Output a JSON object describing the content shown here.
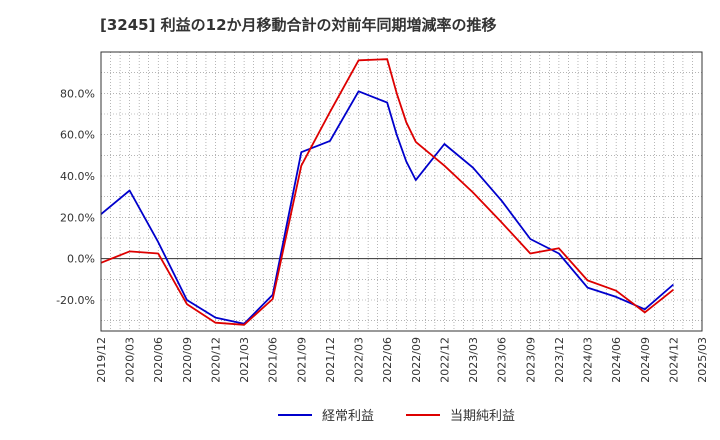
{
  "chart_data": {
    "type": "line",
    "title": "[3245]  利益の12か月移動合計の対前年同期増減率の推移",
    "x_ticks": [
      "2019/12",
      "2020/03",
      "2020/06",
      "2020/09",
      "2020/12",
      "2021/03",
      "2021/06",
      "2021/09",
      "2021/12",
      "2022/03",
      "2022/06",
      "2022/09",
      "2022/12",
      "2023/03",
      "2023/06",
      "2023/09",
      "2023/12",
      "2024/03",
      "2024/06",
      "2024/09",
      "2024/12",
      "2025/03"
    ],
    "y_ticks": [
      "-20.0%",
      "0.0%",
      "20.0%",
      "40.0%",
      "60.0%",
      "80.0%"
    ],
    "y_tick_values": [
      -20,
      0,
      20,
      40,
      60,
      80
    ],
    "ylim": [
      -35,
      100
    ],
    "grid": true,
    "legend_position": "bottom",
    "series": [
      {
        "name": "経常利益",
        "color": "#0000cc",
        "points": [
          [
            "2019/12",
            21.5
          ],
          [
            "2020/03",
            33
          ],
          [
            "2020/06",
            8
          ],
          [
            "2020/09",
            -20
          ],
          [
            "2020/12",
            -28.5
          ],
          [
            "2021/03",
            -31.5
          ],
          [
            "2021/06",
            -17.5
          ],
          [
            "2021/09",
            51.5
          ],
          [
            "2021/12",
            57
          ],
          [
            "2022/03",
            81
          ],
          [
            "2022/06",
            75.5
          ],
          [
            "2022/07",
            60
          ],
          [
            "2022/08",
            47
          ],
          [
            "2022/09",
            38
          ],
          [
            "2022/12",
            55.5
          ],
          [
            "2023/03",
            44
          ],
          [
            "2023/06",
            28
          ],
          [
            "2023/09",
            9.5
          ],
          [
            "2023/12",
            2.5
          ],
          [
            "2024/03",
            -14
          ],
          [
            "2024/06",
            -18.5
          ],
          [
            "2024/09",
            -24.5
          ],
          [
            "2024/12",
            -12.5
          ]
        ]
      },
      {
        "name": "当期純利益",
        "color": "#dd0000",
        "points": [
          [
            "2019/12",
            -2
          ],
          [
            "2020/03",
            3.5
          ],
          [
            "2020/06",
            2.5
          ],
          [
            "2020/09",
            -22
          ],
          [
            "2020/12",
            -31
          ],
          [
            "2021/03",
            -32
          ],
          [
            "2021/06",
            -19.5
          ],
          [
            "2021/09",
            45
          ],
          [
            "2021/12",
            71
          ],
          [
            "2022/03",
            96
          ],
          [
            "2022/06",
            96.5
          ],
          [
            "2022/07",
            80
          ],
          [
            "2022/08",
            66
          ],
          [
            "2022/09",
            56.5
          ],
          [
            "2022/12",
            45
          ],
          [
            "2023/03",
            32
          ],
          [
            "2023/06",
            17.5
          ],
          [
            "2023/09",
            2.5
          ],
          [
            "2023/12",
            5
          ],
          [
            "2024/03",
            -10.5
          ],
          [
            "2024/06",
            -15.5
          ],
          [
            "2024/09",
            -26
          ],
          [
            "2024/12",
            -15
          ]
        ]
      }
    ]
  }
}
